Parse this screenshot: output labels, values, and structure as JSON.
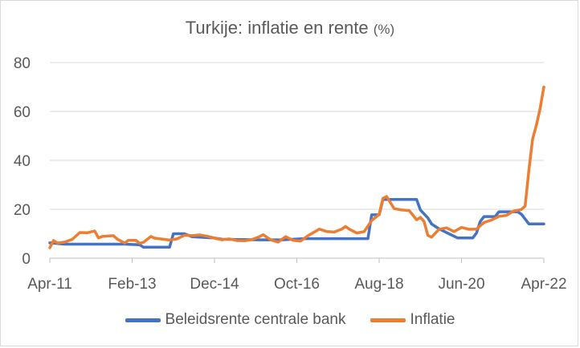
{
  "chart_data": {
    "type": "line",
    "title": "Turkije: inflatie en rente",
    "title_unit": "(%)",
    "xlabel": "",
    "ylabel": "",
    "ylim": [
      0,
      80
    ],
    "y_ticks": [
      0,
      20,
      40,
      60,
      80
    ],
    "x_start": "2011-04",
    "x_end": "2022-04",
    "x_tick_labels": [
      "Apr-11",
      "Feb-13",
      "Dec-14",
      "Oct-16",
      "Aug-18",
      "Jun-20",
      "Apr-22"
    ],
    "x_tick_dates": [
      "2011-04",
      "2013-02",
      "2014-12",
      "2016-10",
      "2018-08",
      "2020-06",
      "2022-04"
    ],
    "grid": true,
    "legend_position": "bottom",
    "series": [
      {
        "name": "Beleidsrente centrale bank",
        "color": "#4472C4",
        "points": [
          [
            "2011-04",
            6.25
          ],
          [
            "2011-08",
            5.75
          ],
          [
            "2012-06",
            5.75
          ],
          [
            "2012-12",
            5.75
          ],
          [
            "2013-04",
            5.5
          ],
          [
            "2013-05",
            4.5
          ],
          [
            "2013-12",
            4.5
          ],
          [
            "2014-01",
            10.0
          ],
          [
            "2014-04",
            10.0
          ],
          [
            "2014-06",
            8.75
          ],
          [
            "2014-12",
            8.25
          ],
          [
            "2015-02",
            7.75
          ],
          [
            "2015-12",
            7.5
          ],
          [
            "2016-06",
            7.5
          ],
          [
            "2016-12",
            8.0
          ],
          [
            "2017-06",
            8.0
          ],
          [
            "2018-05",
            8.0
          ],
          [
            "2018-06",
            17.75
          ],
          [
            "2018-08",
            17.75
          ],
          [
            "2018-09",
            24.0
          ],
          [
            "2019-06",
            24.0
          ],
          [
            "2019-07",
            19.75
          ],
          [
            "2019-09",
            16.5
          ],
          [
            "2019-10",
            14.0
          ],
          [
            "2019-12",
            12.0
          ],
          [
            "2020-01",
            11.25
          ],
          [
            "2020-03",
            9.75
          ],
          [
            "2020-05",
            8.25
          ],
          [
            "2020-09",
            8.25
          ],
          [
            "2020-10",
            10.25
          ],
          [
            "2020-11",
            15.0
          ],
          [
            "2020-12",
            17.0
          ],
          [
            "2021-03",
            17.0
          ],
          [
            "2021-04",
            19.0
          ],
          [
            "2021-09",
            19.0
          ],
          [
            "2021-10",
            18.0
          ],
          [
            "2021-11",
            16.0
          ],
          [
            "2021-12",
            14.0
          ],
          [
            "2022-04",
            14.0
          ]
        ]
      },
      {
        "name": "Inflatie",
        "color": "#ED7D31",
        "points": [
          [
            "2011-04",
            4.3
          ],
          [
            "2011-05",
            7.2
          ],
          [
            "2011-06",
            6.2
          ],
          [
            "2011-08",
            6.6
          ],
          [
            "2011-10",
            7.7
          ],
          [
            "2011-12",
            10.5
          ],
          [
            "2012-02",
            10.4
          ],
          [
            "2012-04",
            11.1
          ],
          [
            "2012-05",
            8.3
          ],
          [
            "2012-06",
            8.9
          ],
          [
            "2012-09",
            9.2
          ],
          [
            "2012-10",
            7.8
          ],
          [
            "2012-12",
            6.2
          ],
          [
            "2013-01",
            7.3
          ],
          [
            "2013-03",
            7.3
          ],
          [
            "2013-04",
            6.1
          ],
          [
            "2013-05",
            6.5
          ],
          [
            "2013-07",
            8.9
          ],
          [
            "2013-08",
            8.2
          ],
          [
            "2013-12",
            7.4
          ],
          [
            "2014-02",
            7.9
          ],
          [
            "2014-04",
            9.4
          ],
          [
            "2014-06",
            9.2
          ],
          [
            "2014-08",
            9.5
          ],
          [
            "2014-10",
            9.0
          ],
          [
            "2014-12",
            8.2
          ],
          [
            "2015-02",
            7.5
          ],
          [
            "2015-04",
            7.9
          ],
          [
            "2015-06",
            7.2
          ],
          [
            "2015-08",
            7.1
          ],
          [
            "2015-10",
            7.6
          ],
          [
            "2015-12",
            8.8
          ],
          [
            "2016-01",
            9.6
          ],
          [
            "2016-03",
            7.5
          ],
          [
            "2016-05",
            6.6
          ],
          [
            "2016-07",
            8.8
          ],
          [
            "2016-09",
            7.3
          ],
          [
            "2016-11",
            7.0
          ],
          [
            "2017-01",
            9.2
          ],
          [
            "2017-04",
            11.9
          ],
          [
            "2017-06",
            10.9
          ],
          [
            "2017-08",
            10.7
          ],
          [
            "2017-10",
            11.9
          ],
          [
            "2017-11",
            12.98
          ],
          [
            "2017-12",
            11.9
          ],
          [
            "2018-02",
            10.3
          ],
          [
            "2018-04",
            10.9
          ],
          [
            "2018-06",
            15.4
          ],
          [
            "2018-08",
            17.9
          ],
          [
            "2018-09",
            24.5
          ],
          [
            "2018-10",
            25.2
          ],
          [
            "2018-12",
            20.3
          ],
          [
            "2019-02",
            19.7
          ],
          [
            "2019-04",
            19.5
          ],
          [
            "2019-06",
            15.7
          ],
          [
            "2019-07",
            16.7
          ],
          [
            "2019-08",
            15.0
          ],
          [
            "2019-09",
            9.3
          ],
          [
            "2019-10",
            8.6
          ],
          [
            "2019-12",
            11.8
          ],
          [
            "2020-02",
            12.4
          ],
          [
            "2020-04",
            10.9
          ],
          [
            "2020-06",
            12.6
          ],
          [
            "2020-08",
            11.8
          ],
          [
            "2020-10",
            11.9
          ],
          [
            "2020-12",
            14.6
          ],
          [
            "2021-02",
            15.6
          ],
          [
            "2021-04",
            17.1
          ],
          [
            "2021-06",
            17.5
          ],
          [
            "2021-08",
            19.3
          ],
          [
            "2021-10",
            19.9
          ],
          [
            "2021-11",
            21.3
          ],
          [
            "2021-12",
            36.1
          ],
          [
            "2022-01",
            48.7
          ],
          [
            "2022-02",
            54.4
          ],
          [
            "2022-03",
            61.1
          ],
          [
            "2022-04",
            70.0
          ]
        ]
      }
    ]
  }
}
